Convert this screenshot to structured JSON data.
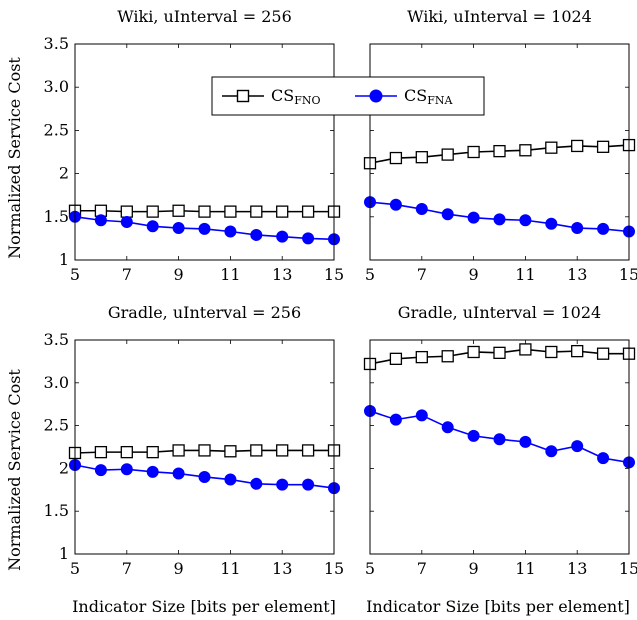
{
  "legend": {
    "entries": [
      {
        "base": "CS",
        "sub": "FNO",
        "marker": "square",
        "color": "#000000"
      },
      {
        "base": "CS",
        "sub": "FNA",
        "marker": "circle",
        "color": "#0000ff"
      }
    ]
  },
  "axis_labels": {
    "ylabel": "Normalized Service Cost",
    "xlabel": "Indicator Size [bits per element]"
  },
  "chart_data": [
    {
      "type": "line",
      "title": "Wiki, uInterval = 256",
      "x": [
        5,
        6,
        7,
        8,
        9,
        10,
        11,
        12,
        13,
        14,
        15
      ],
      "xlim": [
        5,
        15
      ],
      "xticks": [
        5,
        7,
        9,
        11,
        13,
        15
      ],
      "ylim": [
        1,
        3.5
      ],
      "yticks": [
        1,
        1.5,
        2,
        2.5,
        3.0,
        3.5
      ],
      "ytick_labels": [
        "1",
        "1.5",
        "2",
        "2.5",
        "3.0",
        "3.5"
      ],
      "series": [
        {
          "name": "CS_FNO",
          "values": [
            1.57,
            1.57,
            1.56,
            1.56,
            1.57,
            1.56,
            1.56,
            1.56,
            1.56,
            1.56,
            1.56
          ]
        },
        {
          "name": "CS_FNA",
          "values": [
            1.5,
            1.46,
            1.44,
            1.39,
            1.37,
            1.36,
            1.33,
            1.29,
            1.27,
            1.25,
            1.24
          ]
        }
      ]
    },
    {
      "type": "line",
      "title": "Wiki, uInterval = 1024",
      "x": [
        5,
        6,
        7,
        8,
        9,
        10,
        11,
        12,
        13,
        14,
        15
      ],
      "xlim": [
        5,
        15
      ],
      "xticks": [
        5,
        7,
        9,
        11,
        13,
        15
      ],
      "ylim": [
        1,
        3.5
      ],
      "series": [
        {
          "name": "CS_FNO",
          "values": [
            2.12,
            2.18,
            2.19,
            2.22,
            2.25,
            2.26,
            2.27,
            2.3,
            2.32,
            2.31,
            2.33
          ]
        },
        {
          "name": "CS_FNA",
          "values": [
            1.67,
            1.64,
            1.59,
            1.53,
            1.49,
            1.47,
            1.46,
            1.42,
            1.37,
            1.36,
            1.33
          ]
        }
      ]
    },
    {
      "type": "line",
      "title": "Gradle, uInterval = 256",
      "x": [
        5,
        6,
        7,
        8,
        9,
        10,
        11,
        12,
        13,
        14,
        15
      ],
      "xlim": [
        5,
        15
      ],
      "xticks": [
        5,
        7,
        9,
        11,
        13,
        15
      ],
      "ylim": [
        1,
        3.5
      ],
      "yticks": [
        1,
        1.5,
        2,
        2.5,
        3.0,
        3.5
      ],
      "ytick_labels": [
        "1",
        "1.5",
        "2",
        "2.5",
        "3.0",
        "3.5"
      ],
      "series": [
        {
          "name": "CS_FNO",
          "values": [
            2.18,
            2.19,
            2.19,
            2.19,
            2.21,
            2.21,
            2.2,
            2.21,
            2.21,
            2.21,
            2.21
          ]
        },
        {
          "name": "CS_FNA",
          "values": [
            2.04,
            1.98,
            1.99,
            1.96,
            1.94,
            1.9,
            1.87,
            1.82,
            1.81,
            1.81,
            1.77
          ]
        }
      ]
    },
    {
      "type": "line",
      "title": "Gradle, uInterval = 1024",
      "x": [
        5,
        6,
        7,
        8,
        9,
        10,
        11,
        12,
        13,
        14,
        15
      ],
      "xlim": [
        5,
        15
      ],
      "xticks": [
        5,
        7,
        9,
        11,
        13,
        15
      ],
      "ylim": [
        1,
        3.5
      ],
      "series": [
        {
          "name": "CS_FNO",
          "values": [
            3.22,
            3.28,
            3.3,
            3.31,
            3.36,
            3.35,
            3.39,
            3.36,
            3.37,
            3.34,
            3.34
          ]
        },
        {
          "name": "CS_FNA",
          "values": [
            2.67,
            2.57,
            2.62,
            2.48,
            2.38,
            2.34,
            2.31,
            2.2,
            2.26,
            2.12,
            2.07
          ]
        }
      ]
    }
  ]
}
